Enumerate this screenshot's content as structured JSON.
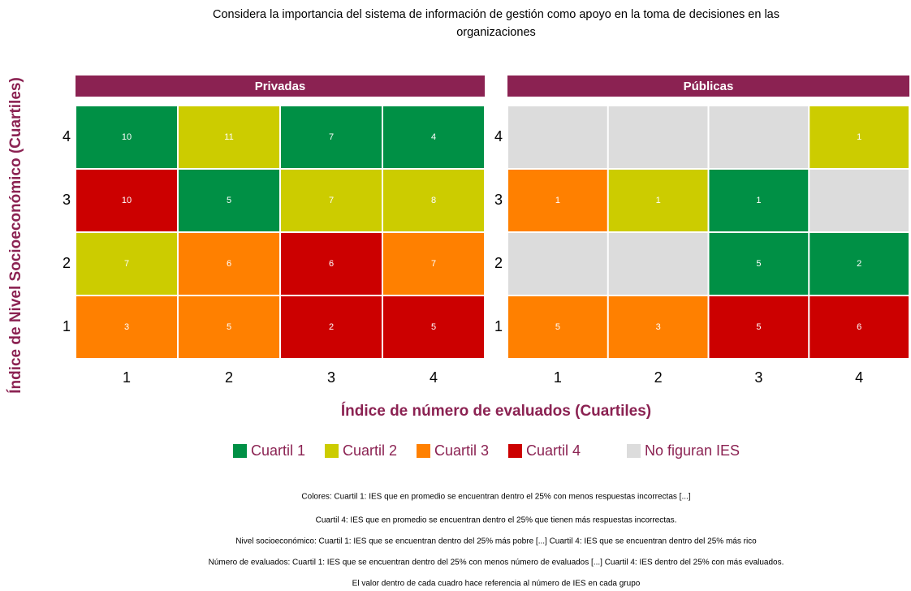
{
  "title": "Considera la importancia del sistema de información de gestión como apoyo en la toma de decisiones en las organizaciones",
  "title_lines": [
    "Considera la importancia del sistema de información de gestión como apoyo en la toma de decisiones en las",
    "organizaciones"
  ],
  "x_label": "Índice de número de evaluados (Cuartiles)",
  "y_label": "Índice de Nivel Socioeconómico (Cuartiles)",
  "strip_color": "#8b2252",
  "legend": [
    {
      "name": "Cuartil 1",
      "color": "#009045"
    },
    {
      "name": "Cuartil 2",
      "color": "#cccc00"
    },
    {
      "name": "Cuartil 3",
      "color": "#ff8000"
    },
    {
      "name": "Cuartil 4",
      "color": "#cc0000"
    },
    {
      "name": "No figuran IES",
      "color": "#dcdcdc"
    }
  ],
  "notes": [
    "Colores: Cuartil 1:  IES que en promedio se encuentran dentro el 25% con menos respuestas incorrectas [...]",
    "Cuartil 4: IES que en promedio se encuentran dentro el 25% que tienen más respuestas incorrectas.",
    "Nivel socioeconómico: Cuartil 1: IES que se encuentran dentro del 25% más pobre [...] Cuartil 4: IES que se encuentran dentro del 25% más rico",
    "Número de evaluados: Cuartil 1: IES que se encuentran dentro del 25% con menos número de evaluados [...] Cuartil 4: IES dentro del 25% con más evaluados.",
    "El valor dentro de cada cuadro hace referencia al número de IES en cada grupo"
  ],
  "chart_data": [
    {
      "type": "heatmap",
      "facet": "Privadas",
      "categories": [
        "1",
        "2",
        "3",
        "4"
      ],
      "y_categories": [
        "4",
        "3",
        "2",
        "1"
      ],
      "values": [
        [
          10,
          11,
          7,
          4
        ],
        [
          10,
          5,
          7,
          8
        ],
        [
          7,
          6,
          6,
          7
        ],
        [
          3,
          5,
          2,
          5
        ]
      ],
      "colors": [
        [
          "#009045",
          "#cccc00",
          "#009045",
          "#009045"
        ],
        [
          "#cc0000",
          "#009045",
          "#cccc00",
          "#cccc00"
        ],
        [
          "#cccc00",
          "#ff8000",
          "#cc0000",
          "#ff8000"
        ],
        [
          "#ff8000",
          "#ff8000",
          "#cc0000",
          "#cc0000"
        ]
      ]
    },
    {
      "type": "heatmap",
      "facet": "Públicas",
      "categories": [
        "1",
        "2",
        "3",
        "4"
      ],
      "y_categories": [
        "4",
        "3",
        "2",
        "1"
      ],
      "values": [
        [
          null,
          null,
          null,
          1
        ],
        [
          1,
          1,
          1,
          null
        ],
        [
          null,
          null,
          5,
          2
        ],
        [
          5,
          3,
          5,
          6
        ]
      ],
      "colors": [
        [
          "#dcdcdc",
          "#dcdcdc",
          "#dcdcdc",
          "#cccc00"
        ],
        [
          "#ff8000",
          "#cccc00",
          "#009045",
          "#dcdcdc"
        ],
        [
          "#dcdcdc",
          "#dcdcdc",
          "#009045",
          "#009045"
        ],
        [
          "#ff8000",
          "#ff8000",
          "#cc0000",
          "#cc0000"
        ]
      ]
    }
  ]
}
